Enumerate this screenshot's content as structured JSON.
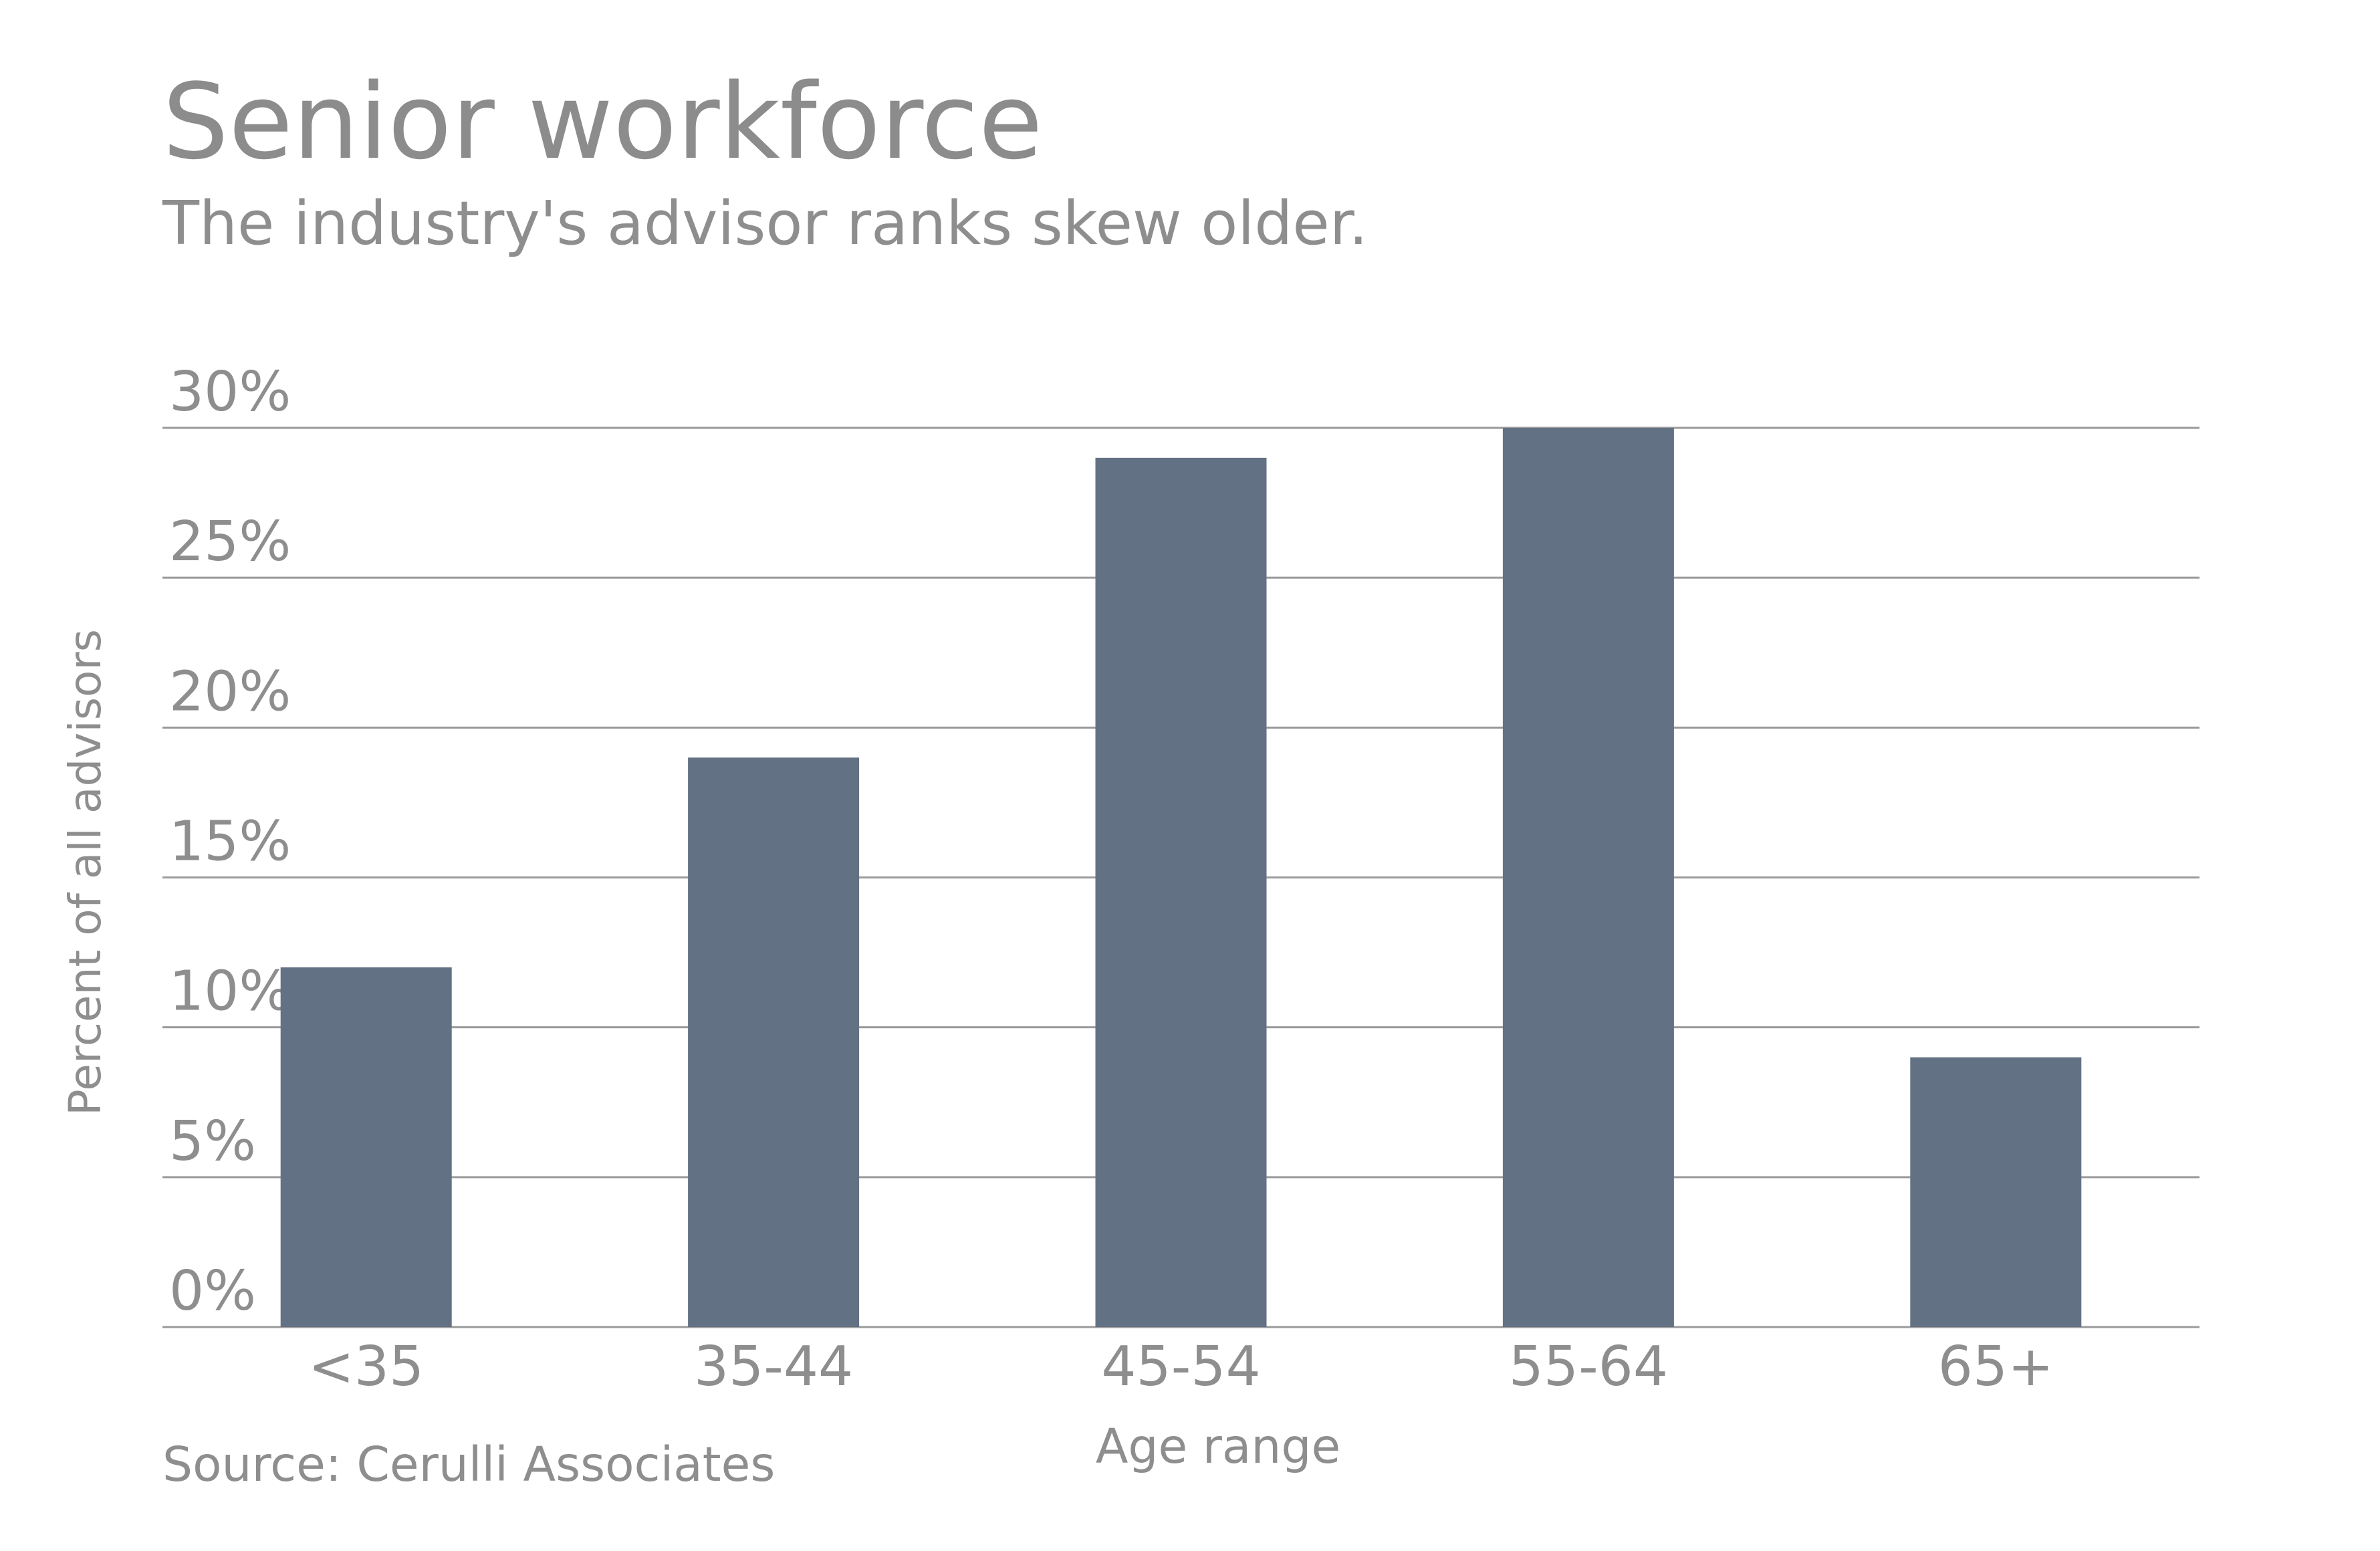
{
  "header": {
    "title": "Senior workforce",
    "subtitle": "The industry's advisor ranks skew older."
  },
  "footer": {
    "source": "Source: Cerulli Associates"
  },
  "colors": {
    "bar": "#637184",
    "grid": "#9a9a9a",
    "text": "#8e8e8e"
  },
  "chart_data": {
    "type": "bar",
    "title": "Senior workforce",
    "subtitle": "The industry's advisor ranks skew older.",
    "xlabel": "Age range",
    "ylabel": "Percent of all advisors",
    "categories": [
      "<35",
      "35-44",
      "45-54",
      "55-64",
      "65+"
    ],
    "values": [
      12,
      19,
      29,
      30,
      9
    ],
    "ylim": [
      0,
      30
    ],
    "yticks": [
      0,
      5,
      10,
      15,
      20,
      25,
      30
    ],
    "ytick_labels": [
      "0%",
      "5%",
      "10%",
      "15%",
      "20%",
      "25%",
      "30%"
    ],
    "grid": true,
    "legend": "none"
  }
}
